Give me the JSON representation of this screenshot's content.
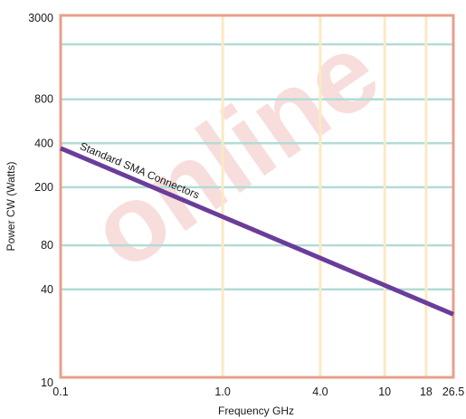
{
  "chart_data": {
    "type": "line",
    "title": "",
    "xlabel": "Frequency GHz",
    "ylabel": "Power CW (Watts)",
    "x_scale": "log",
    "y_scale": "log",
    "xlim": [
      0.1,
      26.5
    ],
    "ylim": [
      10,
      3000
    ],
    "x_ticks": [
      {
        "value": 0.1,
        "label": "0.1"
      },
      {
        "value": 1.0,
        "label": "1.0"
      },
      {
        "value": 4.0,
        "label": "4.0"
      },
      {
        "value": 10,
        "label": "10"
      },
      {
        "value": 18,
        "label": "18"
      },
      {
        "value": 26.5,
        "label": "26.5"
      }
    ],
    "y_ticks": [
      {
        "value": 10,
        "label": "10"
      },
      {
        "value": 40,
        "label": "40"
      },
      {
        "value": 80,
        "label": "80"
      },
      {
        "value": 200,
        "label": "200"
      },
      {
        "value": 400,
        "label": "400"
      },
      {
        "value": 800,
        "label": "800"
      },
      {
        "value": 3000,
        "label": "3000"
      }
    ],
    "y_gridlines": [
      40,
      80,
      200,
      400,
      800,
      1900
    ],
    "x_gridlines": [
      1.0,
      4.0,
      10,
      18
    ],
    "grid": true,
    "series": [
      {
        "name": "Standard SMA Connectors",
        "x": [
          0.1,
          26.5
        ],
        "y": [
          370,
          27
        ],
        "color": "#6a3d9a"
      }
    ],
    "colors": {
      "frame": "#e8a08a",
      "y_grid": "#b2dcd6",
      "x_grid": "#faeac4"
    },
    "watermark": "online"
  }
}
